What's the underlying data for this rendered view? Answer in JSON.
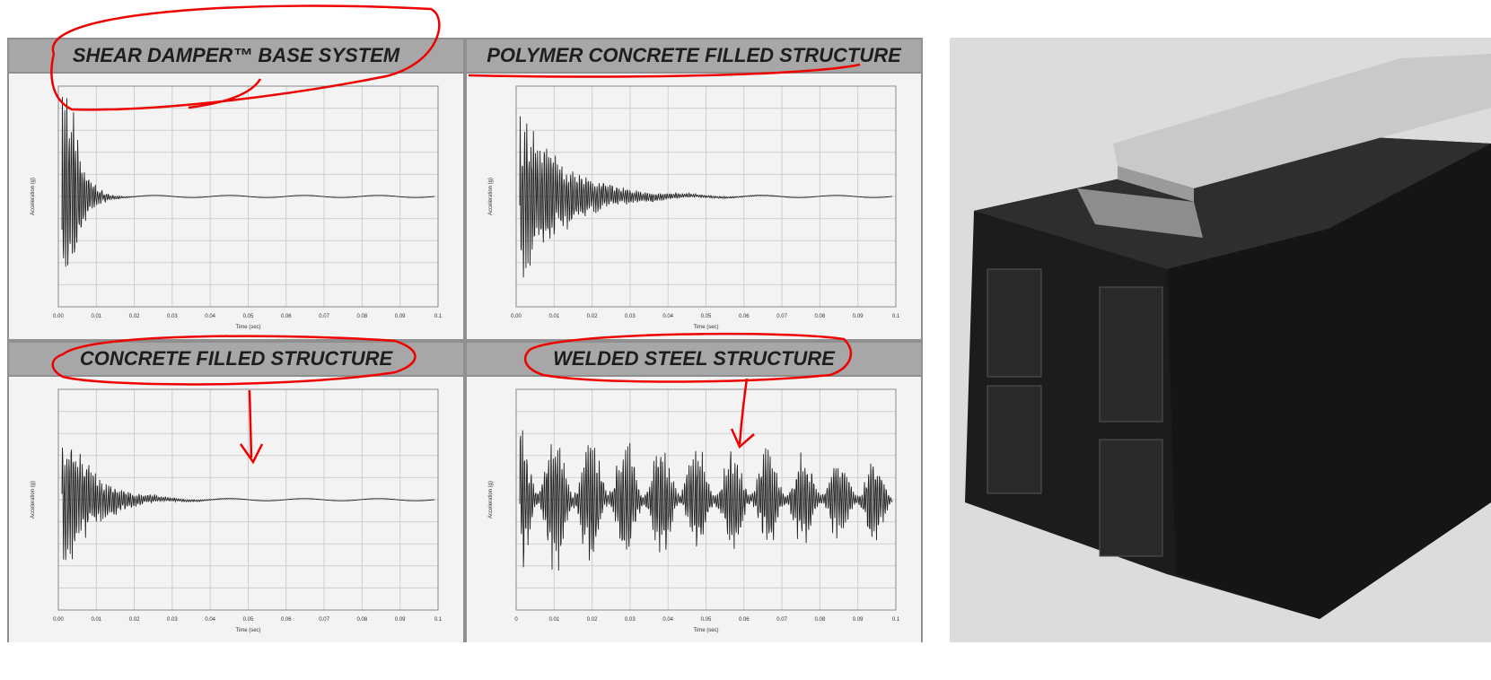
{
  "panels": [
    {
      "title": "SHEAR DAMPER™ BASE SYSTEM",
      "x_label": "Time (sec)",
      "y_label": "Acceleration (g)",
      "x_ticks": [
        "0.00",
        "0.01",
        "0.02",
        "0.03",
        "0.04",
        "0.05",
        "0.06",
        "0.07",
        "0.08",
        "0.09",
        "0.1"
      ]
    },
    {
      "title": "POLYMER CONCRETE FILLED STRUCTURE",
      "x_label": "Time (sec)",
      "y_label": "Acceleration (g)",
      "x_ticks": [
        "0.00",
        "0.01",
        "0.02",
        "0.03",
        "0.04",
        "0.05",
        "0.06",
        "0.07",
        "0.08",
        "0.09",
        "0.1"
      ]
    },
    {
      "title": "CONCRETE FILLED STRUCTURE",
      "x_label": "Time (sec)",
      "y_label": "Acceleration (g)",
      "x_ticks": [
        "0.00",
        "0.01",
        "0.02",
        "0.03",
        "0.04",
        "0.05",
        "0.06",
        "0.07",
        "0.08",
        "0.09",
        "0.1"
      ]
    },
    {
      "title": "WELDED STEEL STRUCTURE",
      "x_label": "Time (sec)",
      "y_label": "Acceleration (g)",
      "x_ticks": [
        "0",
        "0.01",
        "0.02",
        "0.03",
        "0.04",
        "0.05",
        "0.06",
        "0.07",
        "0.08",
        "0.09",
        "0.1"
      ]
    }
  ]
}
